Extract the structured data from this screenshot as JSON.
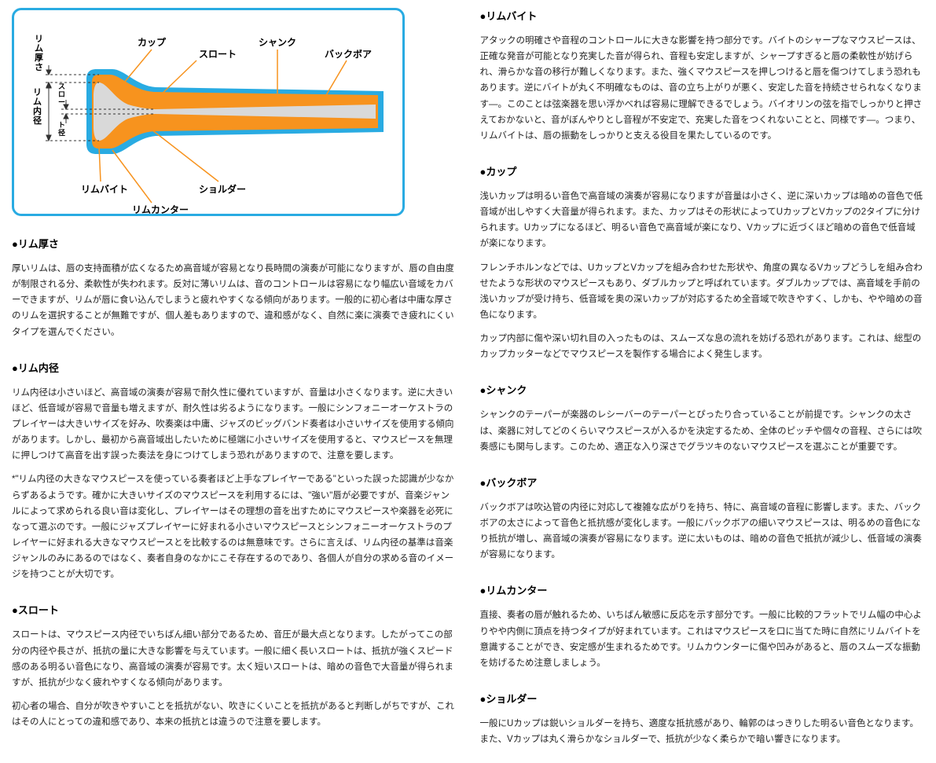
{
  "diagram": {
    "type": "infographic",
    "border_color": "#29abe2",
    "background": "#ffffff",
    "mouthpiece_outer_color": "#29abe2",
    "mouthpiece_body_color": "#f7931e",
    "mouthpiece_bore_color": "#d9d9d9",
    "leader_color": "#f7931e",
    "dimension_line_color": "#333333",
    "labels": {
      "cup": "カップ",
      "throat": "スロート",
      "shank": "シャンク",
      "backbore": "バックボア",
      "rim_bite": "リムバイト",
      "shoulder": "ショルダー",
      "rim_counter": "リムカンター",
      "rim_thickness": "リム厚さ",
      "rim_inner_diameter": "リム内径",
      "throat_diameter": "スロート径"
    }
  },
  "left_sections": [
    {
      "heading": "●リム厚さ",
      "paragraphs": [
        "厚いリムは、唇の支持面積が広くなるため高音域が容易となり長時間の演奏が可能になりますが、唇の自由度が制限される分、柔軟性が失われます。反対に薄いリムは、音のコントロールは容易になり幅広い音域をカバーできますが、リムが唇に食い込んでしまうと疲れやすくなる傾向があります。一般的に初心者は中庸な厚さのリムを選択することが無難ですが、個人差もありますので、違和感がなく、自然に楽に演奏でき疲れにくいタイプを選んでください。"
      ]
    },
    {
      "heading": "●リム内径",
      "paragraphs": [
        "リム内径は小さいほど、高音域の演奏が容易で耐久性に優れていますが、音量は小さくなります。逆に大きいほど、低音域が容易で音量も増えますが、耐久性は劣るようになります。一般にシンフォニーオーケストラのプレイヤーは大きいサイズを好み、吹奏楽は中庸、ジャズのビッグバンド奏者は小さいサイズを使用する傾向があります。しかし、最初から高音域出したいために極端に小さいサイズを使用すると、マウスピースを無理に押しつけて高音を出す誤った奏法を身につけてしまう恐れがありますので、注意を要します。",
        "*\"リム内径の大きなマウスピースを使っている奏者ほど上手なプレイヤーである\"といった誤った認識が少なからずあるようです。確かに大きいサイズのマウスピースを利用するには、\"強い\"唇が必要ですが、音楽ジャンルによって求められる良い音は変化し、プレイヤーはその理想の音を出すためにマウスピースや楽器を必死になって選ぶのです。一般にジャズプレイヤーに好まれる小さいマウスピースとシンフォニーオーケストラのプレイヤーに好まれる大きなマウスピースとを比較するのは無意味です。さらに言えば、リム内径の基準は音楽ジャンルのみにあるのではなく、奏者自身のなかにこそ存在するのであり、各個人が自分の求める音のイメージを持つことが大切です。"
      ]
    },
    {
      "heading": "●スロート",
      "paragraphs": [
        "スロートは、マウスピース内径でいちばん細い部分であるため、音圧が最大点となります。したがってこの部分の内径や長さが、抵抗の量に大きな影響を与えています。一般に細く長いスロートは、抵抗が強くスピード感のある明るい音色になり、高音域の演奏が容易です。太く短いスロートは、暗めの音色で大音量が得られますが、抵抗が少なく疲れやすくなる傾向があります。",
        "初心者の場合、自分が吹きやすいことを抵抗がない、吹きにくいことを抵抗があると判断しがちですが、これはその人にとっての違和感であり、本来の抵抗とは違うので注意を要します。"
      ]
    }
  ],
  "right_sections": [
    {
      "heading": "●リムバイト",
      "paragraphs": [
        "アタックの明確さや音程のコントロールに大きな影響を持つ部分です。バイトのシャープなマウスピースは、正確な発音が可能となり充実した音が得られ、音程も安定しますが、シャープすぎると唇の柔軟性が妨げられ、滑らかな音の移行が難しくなります。また、強くマウスピースを押しつけると唇を傷つけてしまう恐れもあります。逆にバイトが丸く不明確なものは、音の立ち上がりが悪く、安定した音を持続させられなくなります―。このことは弦楽器を思い浮かべれば容易に理解できるでしょう。バイオリンの弦を指でしっかりと押さえておかないと、音がぼんやりとし音程が不安定で、充実した音をつくれないことと、同様です―。つまり、リムバイトは、唇の振動をしっかりと支える役目を果たしているのです。"
      ]
    },
    {
      "heading": "●カップ",
      "paragraphs": [
        "浅いカップは明るい音色で高音域の演奏が容易になりますが音量は小さく、逆に深いカップは暗めの音色で低音域が出しやすく大音量が得られます。また、カップはその形状によってUカップとVカップの2タイプに分けられます。Uカップになるほど、明るい音色で高音域が楽になり、Vカップに近づくほど暗めの音色で低音域が楽になります。",
        "フレンチホルンなどでは、UカップとVカップを組み合わせた形状や、角度の異なるVカップどうしを組み合わせたような形状のマウスピースもあり、ダブルカップと呼ばれています。ダブルカップでは、高音域を手前の浅いカップが受け持ち、低音域を奥の深いカップが対応するため全音域で吹きやすく、しかも、やや暗めの音色になります。",
        "カップ内部に傷や深い切れ目の入ったものは、スムーズな息の流れを妨げる恐れがあります。これは、総型のカップカッターなどでマウスピースを製作する場合によく発生します。"
      ]
    },
    {
      "heading": "●シャンク",
      "paragraphs": [
        "シャンクのテーパーが楽器のレシーバーのテーパーとぴったり合っていることが前提です。シャンクの太さは、楽器に対してどのくらいマウスピースが入るかを決定するため、全体のピッチや個々の音程、さらには吹奏感にも関与します。このため、適正な入り深さでグラツキのないマウスピースを選ぶことが重要です。"
      ]
    },
    {
      "heading": "●バックボア",
      "paragraphs": [
        "バックボアは吹込管の内径に対応して複雑な広がりを持ち、特に、高音域の音程に影響します。また、バックボアの太さによって音色と抵抗感が変化します。一般にバックボアの細いマウスピースは、明るめの音色になり抵抗が増し、高音域の演奏が容易になります。逆に太いものは、暗めの音色で抵抗が減少し、低音域の演奏が容易になります。"
      ]
    },
    {
      "heading": "●リムカンター",
      "paragraphs": [
        "直接、奏者の唇が触れるため、いちばん敏感に反応を示す部分です。一般に比較的フラットでリム幅の中心よりやや内側に頂点を持つタイプが好まれています。これはマウスピースを口に当てた時に自然にリムバイトを意識することができ、安定感が生まれるためです。リムカウンターに傷や凹みがあると、唇のスムーズな振動を妨げるため注意しましょう。"
      ]
    },
    {
      "heading": "●ショルダー",
      "paragraphs": [
        "一般にUカップは鋭いショルダーを持ち、適度な抵抗感があり、輪郭のはっきりした明るい音色となります。また、Vカップは丸く滑らかなショルダーで、抵抗が少なく柔らかで暗い響きになります。"
      ]
    }
  ]
}
